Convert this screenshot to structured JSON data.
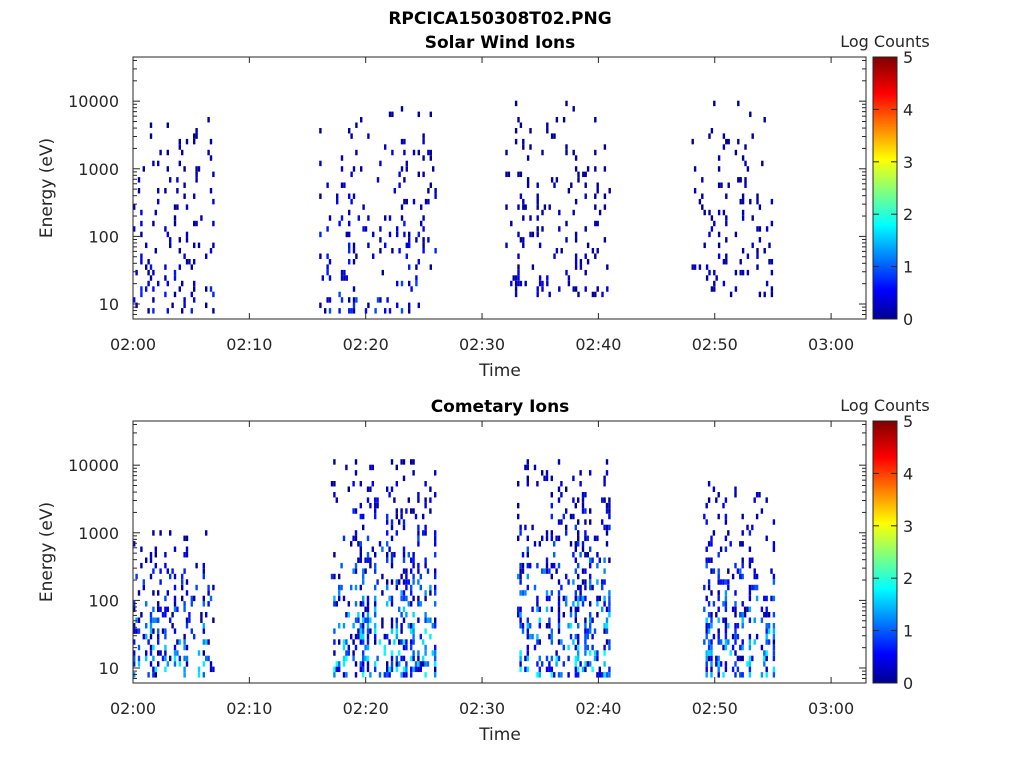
{
  "figure_title": "RPCICA150308T02.PNG",
  "colorbar": {
    "label": "Log Counts",
    "min": 0,
    "max": 5,
    "ticks": [
      "0",
      "1",
      "2",
      "3",
      "4",
      "5"
    ],
    "colormap": "jet"
  },
  "chart_data": [
    {
      "type": "heatmap",
      "title": "Solar Wind Ions",
      "xlabel": "Time",
      "ylabel": "Energy (eV)",
      "x_ticks": [
        "02:00",
        "02:10",
        "02:20",
        "02:30",
        "02:40",
        "02:50",
        "03:00"
      ],
      "xlim": [
        "02:00",
        "03:03"
      ],
      "y_scale": "log",
      "y_ticks": [
        "10",
        "100",
        "1000",
        "10000"
      ],
      "ylim": [
        6,
        45000
      ],
      "value_label": "Log Counts",
      "clusters": [
        {
          "t_start": "02:00",
          "t_end": "02:07",
          "e_min": 7,
          "e_max": 6000,
          "peak_log_counts": 0.8
        },
        {
          "t_start": "02:16",
          "t_end": "02:26",
          "e_min": 7,
          "e_max": 8000,
          "peak_log_counts": 1.0
        },
        {
          "t_start": "02:32",
          "t_end": "02:41",
          "e_min": 12,
          "e_max": 10000,
          "peak_log_counts": 0.5
        },
        {
          "t_start": "02:48",
          "t_end": "02:55",
          "e_min": 12,
          "e_max": 9500,
          "peak_log_counts": 0.5
        }
      ]
    },
    {
      "type": "heatmap",
      "title": "Cometary Ions",
      "xlabel": "Time",
      "ylabel": "Energy (eV)",
      "x_ticks": [
        "02:00",
        "02:10",
        "02:20",
        "02:30",
        "02:40",
        "02:50",
        "03:00"
      ],
      "xlim": [
        "02:00",
        "03:03"
      ],
      "y_scale": "log",
      "y_ticks": [
        "10",
        "100",
        "1000",
        "10000"
      ],
      "ylim": [
        6,
        45000
      ],
      "value_label": "Log Counts",
      "clusters": [
        {
          "t_start": "02:00",
          "t_end": "02:07",
          "e_min": 7,
          "e_max": 1000,
          "peak_log_counts": 1.8
        },
        {
          "t_start": "02:17",
          "t_end": "02:26",
          "e_min": 7,
          "e_max": 12000,
          "peak_log_counts": 1.9
        },
        {
          "t_start": "02:33",
          "t_end": "02:41",
          "e_min": 7,
          "e_max": 13000,
          "peak_log_counts": 1.9
        },
        {
          "t_start": "02:49",
          "t_end": "02:55",
          "e_min": 7,
          "e_max": 6000,
          "peak_log_counts": 1.8
        }
      ]
    }
  ]
}
